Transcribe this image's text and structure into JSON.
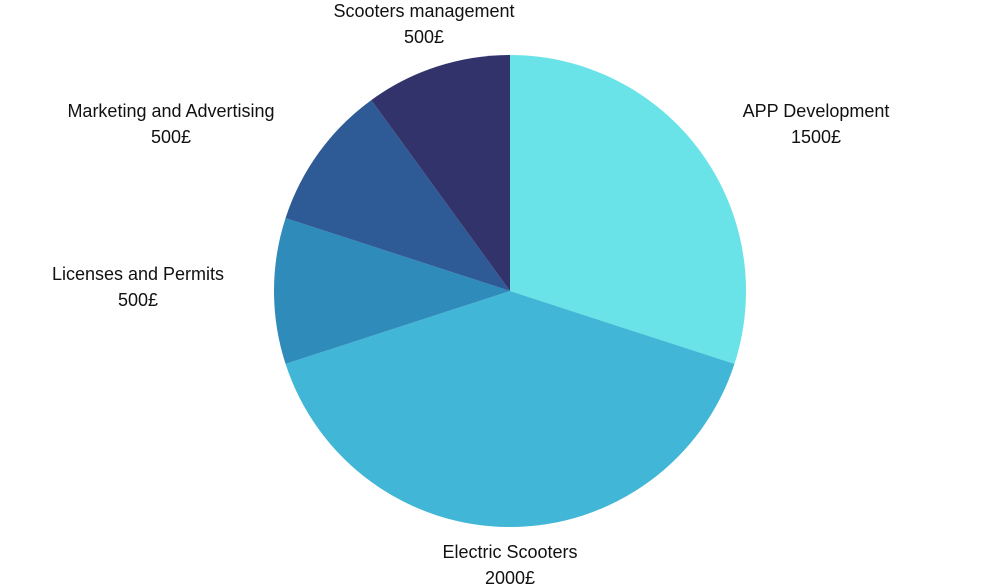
{
  "chart_data": {
    "type": "pie",
    "title": "",
    "slices": [
      {
        "label": "APP Development",
        "value_text": "1500£",
        "value": 1500,
        "color": "#69e3e8"
      },
      {
        "label": "Electric Scooters",
        "value_text": "2000£",
        "value": 2000,
        "color": "#42b6d6"
      },
      {
        "label": "Licenses and Permits",
        "value_text": "500£",
        "value": 500,
        "color": "#2e8bba"
      },
      {
        "label": "Marketing and Advertising",
        "value_text": "500£",
        "value": 500,
        "color": "#2e5b96"
      },
      {
        "label": "Scooters management",
        "value_text": "500£",
        "value": 500,
        "color": "#32336b"
      }
    ],
    "start_angle_deg": 0,
    "direction": "clockwise",
    "legend": "none"
  }
}
